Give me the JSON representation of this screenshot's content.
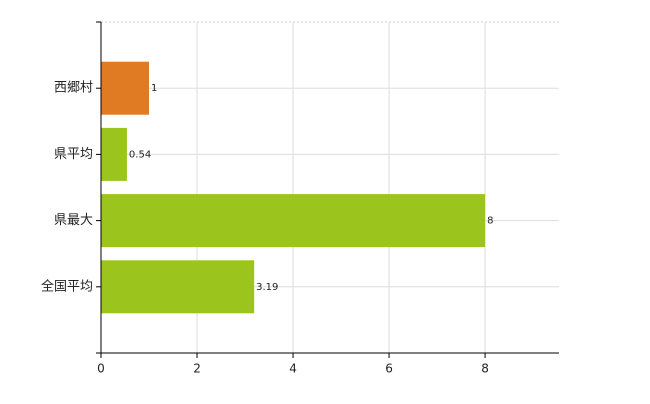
{
  "chart_data": {
    "type": "bar",
    "orientation": "horizontal",
    "categories": [
      "西郷村",
      "県平均",
      "県最大",
      "全国平均"
    ],
    "values": [
      1,
      0.54,
      8,
      3.19
    ],
    "colors": [
      "#e07b24",
      "#9bc41c",
      "#9bc41c",
      "#9bc41c"
    ],
    "xlim": [
      0,
      9.54
    ],
    "xticks": [
      0,
      2,
      4,
      6,
      8
    ],
    "grid": true
  }
}
